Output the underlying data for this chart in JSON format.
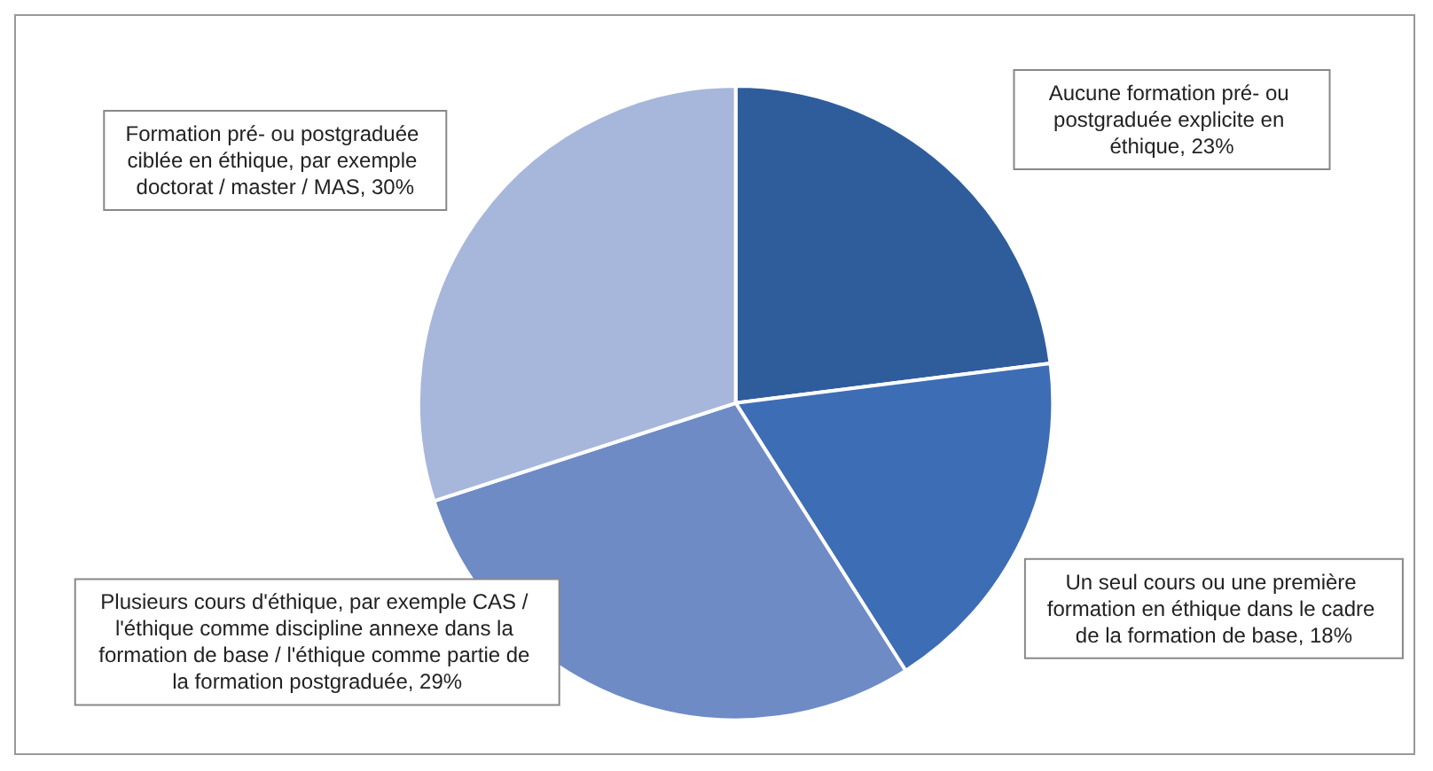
{
  "chart_data": {
    "type": "pie",
    "categories": [
      "Aucune formation pré- ou postgraduée explicite en éthique",
      "Un seul cours ou une première formation en éthique dans le cadre de la formation de base",
      "Plusieurs cours d'éthique, par exemple CAS / l'éthique comme discipline annexe dans la formation de base / l'éthique comme partie de la formation postgraduée",
      "Formation pré- ou postgraduée ciblée en éthique, par exemple doctorat / master / MAS"
    ],
    "values": [
      23,
      18,
      29,
      30
    ],
    "value_labels": [
      "23%",
      "18%",
      "29%",
      "30%"
    ],
    "colors": [
      "#2f5d9c",
      "#3d6db5",
      "#6e8bc6",
      "#a7b7db"
    ],
    "legend": false
  }
}
